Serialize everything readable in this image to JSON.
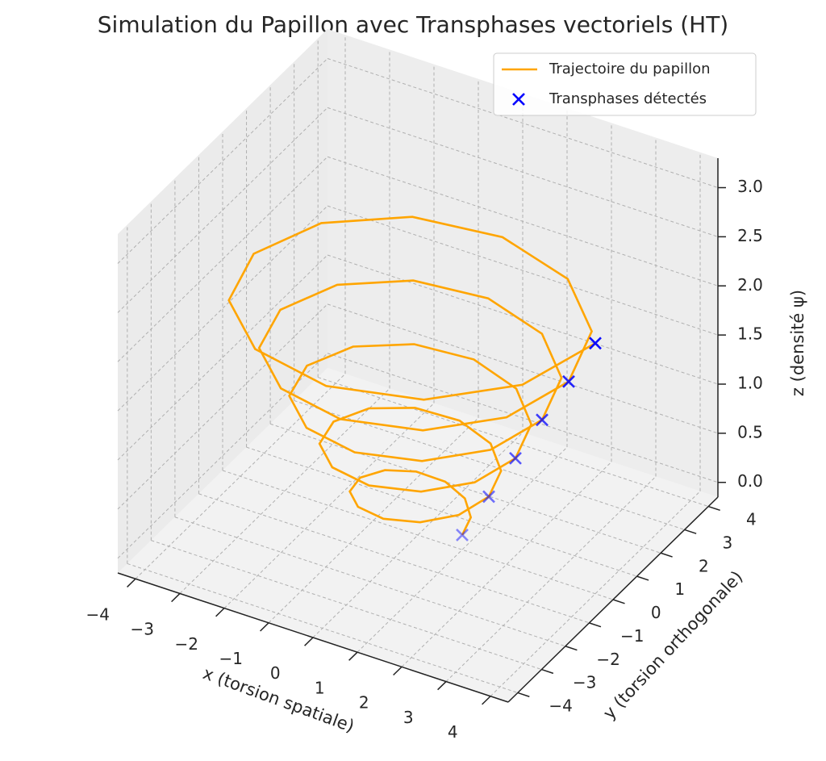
{
  "chart_data": {
    "type": "line3d",
    "title": "Simulation du Papillon avec Transphases vectoriels (HT)",
    "xlabel": "x (torsion spatiale)",
    "ylabel": "y (torsion orthogonale)",
    "zlabel": "z (densité ψ)",
    "xlim": [
      -4.4,
      4.4
    ],
    "ylim": [
      -4.4,
      4.4
    ],
    "zlim": [
      -0.15,
      3.3
    ],
    "xticks": [
      {
        "value": -4,
        "label": "−4"
      },
      {
        "value": -3,
        "label": "−3"
      },
      {
        "value": -2,
        "label": "−2"
      },
      {
        "value": -1,
        "label": "−1"
      },
      0,
      1,
      2,
      3,
      4
    ],
    "yticks": [
      {
        "value": -4,
        "label": "−4"
      },
      {
        "value": -3,
        "label": "−3"
      },
      {
        "value": -2,
        "label": "−2"
      },
      {
        "value": -1,
        "label": "−1"
      },
      0,
      1,
      2,
      3,
      4
    ],
    "zticks": [
      {
        "value": 0,
        "label": "0.0"
      },
      {
        "value": 0.5,
        "label": "0.5"
      },
      {
        "value": 1,
        "label": "1.0"
      },
      {
        "value": 1.5,
        "label": "1.5"
      },
      {
        "value": 2,
        "label": "2.0"
      },
      {
        "value": 2.5,
        "label": "2.5"
      },
      {
        "value": 3,
        "label": "3.0"
      }
    ],
    "grid": true,
    "legend": "upper right",
    "series": [
      {
        "name": "Trajectoire du papillon",
        "type": "line",
        "color": "#ffa500",
        "x": [
          1,
          0.91,
          0.55,
          0,
          -0.6,
          -1.08,
          -1.3,
          -1.17,
          -0.7,
          0,
          0.75,
          1.34,
          1.6,
          1.43,
          0.85,
          0,
          -0.9,
          -1.6,
          -1.9,
          -1.69,
          -1,
          0,
          1.05,
          1.86,
          2.2,
          1.95,
          1.15,
          0,
          -1.2,
          -2.12,
          -2.5,
          -2.21,
          -1.3,
          0,
          1.35,
          2.38,
          2.8,
          2.47,
          1.45,
          0,
          -1.5,
          -2.64,
          -3.1,
          -2.73,
          -1.6,
          0,
          1.65,
          2.9,
          3.4,
          2.99,
          1.75,
          0,
          -1.8,
          -3.16,
          -3.7,
          -3.25,
          -1.9,
          0,
          1.95,
          3.42,
          4
        ],
        "y": [
          0,
          0.53,
          0.95,
          1.15,
          1.04,
          0.63,
          0,
          -0.68,
          -1.21,
          -1.45,
          -1.3,
          -0.78,
          0,
          0.83,
          1.47,
          1.75,
          1.56,
          0.93,
          0,
          -0.98,
          -1.73,
          -2.05,
          -1.82,
          -1.08,
          0,
          1.13,
          1.99,
          2.35,
          2.08,
          1.23,
          0,
          -1.28,
          -2.25,
          -2.65,
          -2.34,
          -1.38,
          0,
          1.43,
          2.51,
          2.95,
          2.6,
          1.53,
          0,
          -1.58,
          -2.77,
          -3.25,
          -2.86,
          -1.68,
          0,
          1.73,
          3.03,
          3.55,
          3.12,
          1.83,
          0,
          -1.88,
          -3.29,
          -3.85,
          -3.38,
          -1.98,
          0
        ],
        "z": [
          0,
          0.04,
          0.08,
          0.12,
          0.16,
          0.2,
          0.24,
          0.28,
          0.32,
          0.36,
          0.4,
          0.44,
          0.48,
          0.52,
          0.56,
          0.6,
          0.64,
          0.68,
          0.72,
          0.76,
          0.8,
          0.84,
          0.88,
          0.92,
          0.96,
          1,
          1.04,
          1.08,
          1.12,
          1.16,
          1.2,
          1.24,
          1.28,
          1.32,
          1.36,
          1.4,
          1.44,
          1.48,
          1.52,
          1.56,
          1.6,
          1.64,
          1.68,
          1.72,
          1.76,
          1.8,
          1.84,
          1.88,
          1.92,
          1.96,
          2,
          2.04,
          2.08,
          2.12,
          2.16,
          2.2,
          2.24,
          2.28,
          2.32,
          2.36,
          2.4
        ]
      },
      {
        "name": "Transphases détectés",
        "type": "scatter",
        "color": "#0000ff",
        "x": [
          1,
          1.6,
          2.2,
          2.8,
          3.4,
          4
        ],
        "y": [
          0,
          0,
          0,
          0,
          0,
          0
        ],
        "z": [
          0,
          0.48,
          0.96,
          1.44,
          1.92,
          2.4
        ]
      }
    ]
  }
}
